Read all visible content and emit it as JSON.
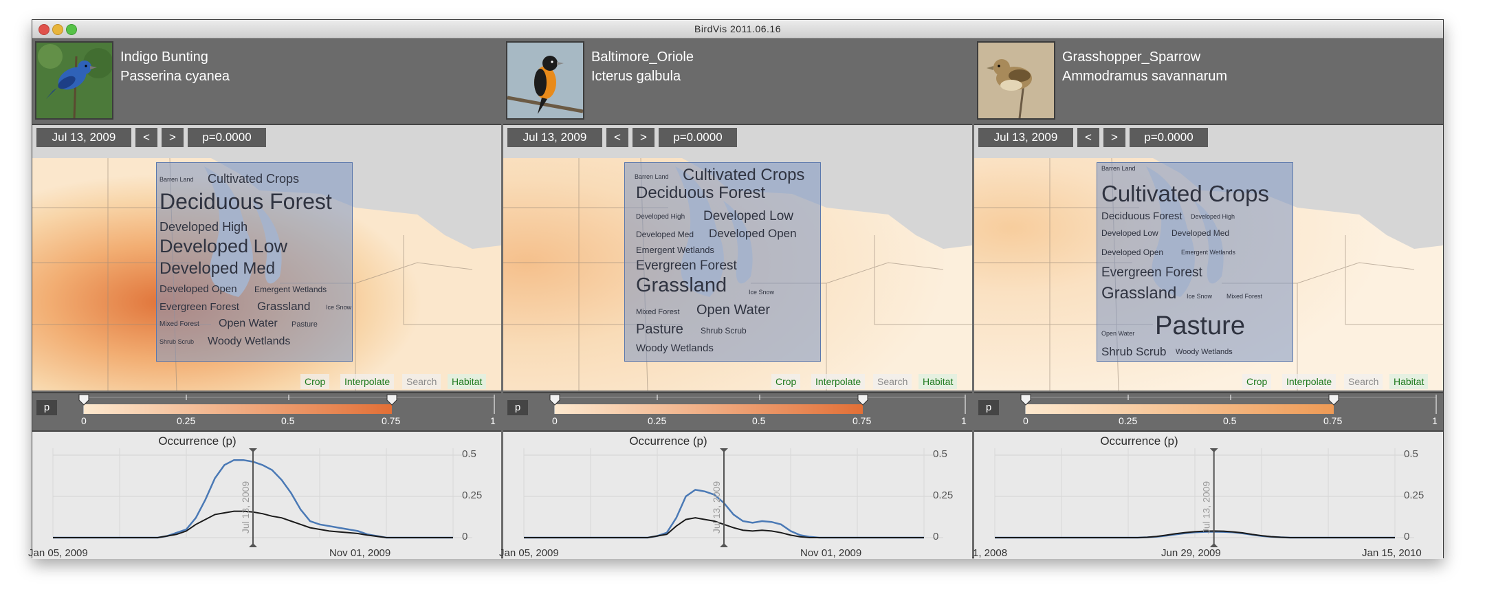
{
  "window": {
    "title": "BirdVis   2011.06.16"
  },
  "panels": [
    {
      "common_name": "Indigo Bunting",
      "scientific_name": "Passerina cyanea",
      "date": "Jul 13, 2009",
      "prev_label": "<",
      "next_label": ">",
      "p_value": "p=0.0000",
      "colors": {
        "bird_body": "#2f62b8",
        "bird_wing": "#1d3f86",
        "photo_bg": "#4c7a3a"
      },
      "habitat_words": [
        {
          "text": "Barren Land",
          "weight": 1
        },
        {
          "text": "Cultivated Crops",
          "weight": 3
        },
        {
          "text": "Deciduous Forest",
          "weight": 7
        },
        {
          "text": "Developed High",
          "weight": 3
        },
        {
          "text": "Developed Low",
          "weight": 6
        },
        {
          "text": "Developed Med",
          "weight": 5
        },
        {
          "text": "Developed Open",
          "weight": 2
        },
        {
          "text": "Emergent Wetlands",
          "weight": 1.5
        },
        {
          "text": "Evergreen Forest",
          "weight": 2.5
        },
        {
          "text": "Grassland",
          "weight": 3
        },
        {
          "text": "Ice Snow",
          "weight": 1
        },
        {
          "text": "Mixed Forest",
          "weight": 1
        },
        {
          "text": "Open Water",
          "weight": 2.5
        },
        {
          "text": "Pasture",
          "weight": 1.5
        },
        {
          "text": "Shrub Scrub",
          "weight": 1
        },
        {
          "text": "Woody Wetlands",
          "weight": 2.5
        }
      ],
      "legend": {
        "ticks": [
          "0",
          "0.25",
          "0.5",
          "0.75",
          "1"
        ],
        "range_low": 0,
        "range_high": 0.75
      },
      "plot": {
        "title": "Occurrence (p)",
        "y_ticks": [
          "0.5",
          "0.25",
          "0"
        ],
        "x_labels": [
          "Jan 05, 2009",
          "Nov 01, 2009"
        ],
        "marker_label": "Jul 13, 2009",
        "series": [
          {
            "values": [
              0.0,
              0.0,
              0.0,
              0.0,
              0.0,
              0.0,
              0.0,
              0.0,
              0.0,
              0.0,
              0.0,
              0.0,
              0.01,
              0.03,
              0.05,
              0.12,
              0.23,
              0.36,
              0.44,
              0.47,
              0.47,
              0.46,
              0.44,
              0.41,
              0.35,
              0.27,
              0.17,
              0.1,
              0.08,
              0.07,
              0.06,
              0.05,
              0.04,
              0.02,
              0.01,
              0.0,
              0.0,
              0.0,
              0.0,
              0.0,
              0.0,
              0.0,
              0.0
            ]
          },
          {
            "values": [
              0.0,
              0.0,
              0.0,
              0.0,
              0.0,
              0.0,
              0.0,
              0.0,
              0.0,
              0.0,
              0.0,
              0.0,
              0.01,
              0.02,
              0.04,
              0.08,
              0.11,
              0.14,
              0.15,
              0.16,
              0.16,
              0.155,
              0.145,
              0.13,
              0.12,
              0.1,
              0.08,
              0.06,
              0.05,
              0.04,
              0.035,
              0.03,
              0.025,
              0.015,
              0.008,
              0.0,
              0.0,
              0.0,
              0.0,
              0.0,
              0.0,
              0.0,
              0.0
            ]
          }
        ],
        "marker_index": 21,
        "colors": [
          "#4a79b5",
          "#1a1a1a"
        ]
      }
    },
    {
      "common_name": "Baltimore_Oriole",
      "scientific_name": "Icterus galbula",
      "date": "Jul 13, 2009",
      "prev_label": "<",
      "next_label": ">",
      "p_value": "p=0.0000",
      "colors": {
        "bird_body": "#e88a1a",
        "bird_wing": "#1c1c1c",
        "photo_bg": "#a7b9c4"
      },
      "habitat_words": [
        {
          "text": "Barren Land",
          "weight": 1
        },
        {
          "text": "Cultivated Crops",
          "weight": 5
        },
        {
          "text": "Deciduous Forest",
          "weight": 5
        },
        {
          "text": "Developed High",
          "weight": 1
        },
        {
          "text": "Developed Low",
          "weight": 3.5
        },
        {
          "text": "Developed Med",
          "weight": 1.5
        },
        {
          "text": "Developed Open",
          "weight": 3
        },
        {
          "text": "Emergent Wetlands",
          "weight": 1.5
        },
        {
          "text": "Evergreen Forest",
          "weight": 3.5
        },
        {
          "text": "Grassland",
          "weight": 7
        },
        {
          "text": "Ice Snow",
          "weight": 1
        },
        {
          "text": "Mixed Forest",
          "weight": 1.2
        },
        {
          "text": "Open Water",
          "weight": 4
        },
        {
          "text": "Pasture",
          "weight": 4
        },
        {
          "text": "Shrub Scrub",
          "weight": 1.5
        },
        {
          "text": "Woody Wetlands",
          "weight": 3
        }
      ],
      "legend": {
        "ticks": [
          "0",
          "0.25",
          "0.5",
          "0.75",
          "1"
        ],
        "range_low": 0,
        "range_high": 0.75
      },
      "plot": {
        "title": "Occurrence (p)",
        "y_ticks": [
          "0.5",
          "0.25",
          "0"
        ],
        "x_labels": [
          "Jan 05, 2009",
          "Nov 01, 2009"
        ],
        "marker_label": "Jul 13, 2009",
        "series": [
          {
            "values": [
              0.0,
              0.0,
              0.0,
              0.0,
              0.0,
              0.0,
              0.0,
              0.0,
              0.0,
              0.0,
              0.0,
              0.0,
              0.0,
              0.0,
              0.01,
              0.03,
              0.12,
              0.25,
              0.29,
              0.28,
              0.26,
              0.21,
              0.14,
              0.1,
              0.09,
              0.1,
              0.095,
              0.08,
              0.04,
              0.015,
              0.005,
              0.0,
              0.0,
              0.0,
              0.0,
              0.0,
              0.0,
              0.0,
              0.0,
              0.0,
              0.0,
              0.0,
              0.0
            ]
          },
          {
            "values": [
              0.0,
              0.0,
              0.0,
              0.0,
              0.0,
              0.0,
              0.0,
              0.0,
              0.0,
              0.0,
              0.0,
              0.0,
              0.0,
              0.0,
              0.01,
              0.02,
              0.07,
              0.11,
              0.12,
              0.11,
              0.1,
              0.08,
              0.06,
              0.045,
              0.04,
              0.045,
              0.04,
              0.03,
              0.015,
              0.005,
              0.0,
              0.0,
              0.0,
              0.0,
              0.0,
              0.0,
              0.0,
              0.0,
              0.0,
              0.0,
              0.0,
              0.0,
              0.0
            ]
          }
        ],
        "marker_index": 21,
        "colors": [
          "#4a79b5",
          "#1a1a1a"
        ]
      }
    },
    {
      "common_name": "Grasshopper_Sparrow",
      "scientific_name": "Ammodramus savannarum",
      "date": "Jul 13, 2009",
      "prev_label": "<",
      "next_label": ">",
      "p_value": "p=0.0000",
      "colors": {
        "bird_body": "#a88a5a",
        "bird_wing": "#6e5632",
        "photo_bg": "#c9b89a"
      },
      "habitat_words": [
        {
          "text": "Barren Land",
          "weight": 1
        },
        {
          "text": "Cultivated Crops",
          "weight": 7
        },
        {
          "text": "Deciduous Forest",
          "weight": 2.5
        },
        {
          "text": "Developed High",
          "weight": 1
        },
        {
          "text": "Developed Low",
          "weight": 1.5
        },
        {
          "text": "Developed Med",
          "weight": 1.5
        },
        {
          "text": "Developed Open",
          "weight": 1.5
        },
        {
          "text": "Emergent Wetlands",
          "weight": 1
        },
        {
          "text": "Evergreen Forest",
          "weight": 3.5
        },
        {
          "text": "Grassland",
          "weight": 5
        },
        {
          "text": "Ice Snow",
          "weight": 1
        },
        {
          "text": "Mixed Forest",
          "weight": 1
        },
        {
          "text": "Open Water",
          "weight": 1
        },
        {
          "text": "Pasture",
          "weight": 8
        },
        {
          "text": "Shrub Scrub",
          "weight": 3
        },
        {
          "text": "Woody Wetlands",
          "weight": 1.2
        }
      ],
      "legend": {
        "ticks": [
          "0",
          "0.25",
          "0.5",
          "0.75",
          "1"
        ],
        "range_low": 0,
        "range_high": 0.75
      },
      "plot": {
        "title": "Occurrence (p)",
        "y_ticks": [
          "0.5",
          "0.25",
          "0"
        ],
        "x_labels": [
          "1, 2008",
          "Jun 29, 2009",
          "Jan 15, 2010"
        ],
        "marker_label": "Jul 13, 2009",
        "series": [
          {
            "values": [
              0.0,
              0.0,
              0.0,
              0.0,
              0.0,
              0.0,
              0.0,
              0.0,
              0.0,
              0.0,
              0.0,
              0.0,
              0.0,
              0.0,
              0.0,
              0.0,
              0.002,
              0.006,
              0.012,
              0.02,
              0.027,
              0.032,
              0.035,
              0.036,
              0.035,
              0.032,
              0.026,
              0.018,
              0.01,
              0.005,
              0.002,
              0.0,
              0.0,
              0.0,
              0.0,
              0.0,
              0.0,
              0.0,
              0.0,
              0.0,
              0.0,
              0.0,
              0.0
            ]
          },
          {
            "values": [
              0.0,
              0.0,
              0.0,
              0.0,
              0.0,
              0.0,
              0.0,
              0.0,
              0.0,
              0.0,
              0.0,
              0.0,
              0.0,
              0.0,
              0.0,
              0.0,
              0.002,
              0.007,
              0.015,
              0.024,
              0.031,
              0.036,
              0.039,
              0.04,
              0.039,
              0.035,
              0.029,
              0.02,
              0.012,
              0.006,
              0.002,
              0.0,
              0.0,
              0.0,
              0.0,
              0.0,
              0.0,
              0.0,
              0.0,
              0.0,
              0.0,
              0.0,
              0.0
            ]
          }
        ],
        "marker_index": 23,
        "colors": [
          "#4a79b5",
          "#1a1a1a"
        ]
      }
    }
  ],
  "toolbar": {
    "crop": "Crop",
    "interpolate": "Interpolate",
    "search": "Search",
    "habitat": "Habitat"
  },
  "legend_label": "p"
}
